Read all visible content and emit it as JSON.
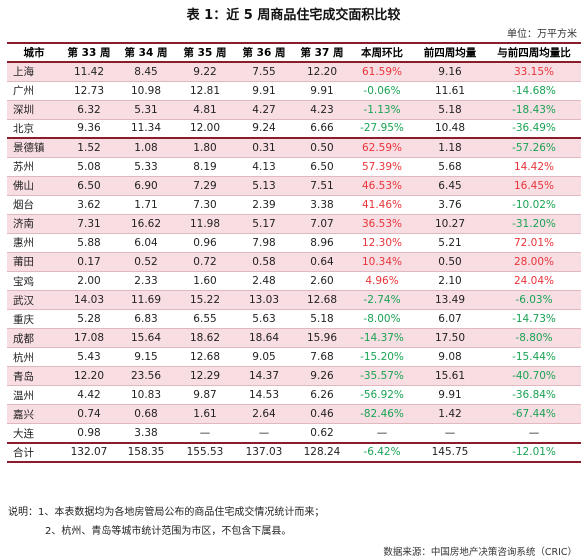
{
  "title": "表 1：近 5 周商品住宅成交面积比较",
  "unit": "单位：万平方米",
  "headers": [
    "城市",
    "第 33 周",
    "第 34 周",
    "第 35 周",
    "第 36 周",
    "第 37 周",
    "本周环比",
    "前四周均量",
    "与前四周均量比"
  ],
  "rows": [
    {
      "city": "上海",
      "w33": "11.42",
      "w34": "8.45",
      "w35": "9.22",
      "w36": "7.55",
      "w37": "12.20",
      "mom": "61.59%",
      "avg4": "9.16",
      "vs4": "33.15%"
    },
    {
      "city": "广州",
      "w33": "12.73",
      "w34": "10.98",
      "w35": "12.81",
      "w36": "9.91",
      "w37": "9.91",
      "mom": "-0.06%",
      "avg4": "11.61",
      "vs4": "-14.68%"
    },
    {
      "city": "深圳",
      "w33": "6.32",
      "w34": "5.31",
      "w35": "4.81",
      "w36": "4.27",
      "w37": "4.23",
      "mom": "-1.13%",
      "avg4": "5.18",
      "vs4": "-18.43%"
    },
    {
      "city": "北京",
      "w33": "9.36",
      "w34": "11.34",
      "w35": "12.00",
      "w36": "9.24",
      "w37": "6.66",
      "mom": "-27.95%",
      "avg4": "10.48",
      "vs4": "-36.49%"
    },
    {
      "city": "景德镇",
      "w33": "1.52",
      "w34": "1.08",
      "w35": "1.80",
      "w36": "0.31",
      "w37": "0.50",
      "mom": "62.59%",
      "avg4": "1.18",
      "vs4": "-57.26%"
    },
    {
      "city": "苏州",
      "w33": "5.08",
      "w34": "5.33",
      "w35": "8.19",
      "w36": "4.13",
      "w37": "6.50",
      "mom": "57.39%",
      "avg4": "5.68",
      "vs4": "14.42%"
    },
    {
      "city": "佛山",
      "w33": "6.50",
      "w34": "6.90",
      "w35": "7.29",
      "w36": "5.13",
      "w37": "7.51",
      "mom": "46.53%",
      "avg4": "6.45",
      "vs4": "16.45%"
    },
    {
      "city": "烟台",
      "w33": "3.62",
      "w34": "1.71",
      "w35": "7.30",
      "w36": "2.39",
      "w37": "3.38",
      "mom": "41.46%",
      "avg4": "3.76",
      "vs4": "-10.02%"
    },
    {
      "city": "济南",
      "w33": "7.31",
      "w34": "16.62",
      "w35": "11.98",
      "w36": "5.17",
      "w37": "7.07",
      "mom": "36.53%",
      "avg4": "10.27",
      "vs4": "-31.20%"
    },
    {
      "city": "惠州",
      "w33": "5.88",
      "w34": "6.04",
      "w35": "0.96",
      "w36": "7.98",
      "w37": "8.96",
      "mom": "12.30%",
      "avg4": "5.21",
      "vs4": "72.01%"
    },
    {
      "city": "莆田",
      "w33": "0.17",
      "w34": "0.52",
      "w35": "0.72",
      "w36": "0.58",
      "w37": "0.64",
      "mom": "10.34%",
      "avg4": "0.50",
      "vs4": "28.00%"
    },
    {
      "city": "宝鸡",
      "w33": "2.00",
      "w34": "2.33",
      "w35": "1.60",
      "w36": "2.48",
      "w37": "2.60",
      "mom": "4.96%",
      "avg4": "2.10",
      "vs4": "24.04%"
    },
    {
      "city": "武汉",
      "w33": "14.03",
      "w34": "11.69",
      "w35": "15.22",
      "w36": "13.03",
      "w37": "12.68",
      "mom": "-2.74%",
      "avg4": "13.49",
      "vs4": "-6.03%"
    },
    {
      "city": "重庆",
      "w33": "5.28",
      "w34": "6.83",
      "w35": "6.55",
      "w36": "5.63",
      "w37": "5.18",
      "mom": "-8.00%",
      "avg4": "6.07",
      "vs4": "-14.73%"
    },
    {
      "city": "成都",
      "w33": "17.08",
      "w34": "15.64",
      "w35": "18.62",
      "w36": "18.64",
      "w37": "15.96",
      "mom": "-14.37%",
      "avg4": "17.50",
      "vs4": "-8.80%"
    },
    {
      "city": "杭州",
      "w33": "5.43",
      "w34": "9.15",
      "w35": "12.68",
      "w36": "9.05",
      "w37": "7.68",
      "mom": "-15.20%",
      "avg4": "9.08",
      "vs4": "-15.44%"
    },
    {
      "city": "青岛",
      "w33": "12.20",
      "w34": "23.56",
      "w35": "12.29",
      "w36": "14.37",
      "w37": "9.26",
      "mom": "-35.57%",
      "avg4": "15.61",
      "vs4": "-40.70%"
    },
    {
      "city": "温州",
      "w33": "4.42",
      "w34": "10.83",
      "w35": "9.87",
      "w36": "14.53",
      "w37": "6.26",
      "mom": "-56.92%",
      "avg4": "9.91",
      "vs4": "-36.84%"
    },
    {
      "city": "嘉兴",
      "w33": "0.74",
      "w34": "0.68",
      "w35": "1.61",
      "w36": "2.64",
      "w37": "0.46",
      "mom": "-82.46%",
      "avg4": "1.42",
      "vs4": "-67.44%"
    },
    {
      "city": "大连",
      "w33": "0.98",
      "w34": "3.38",
      "w35": "—",
      "w36": "—",
      "w37": "0.62",
      "mom": "—",
      "avg4": "—",
      "vs4": "—"
    }
  ],
  "total": {
    "city": "合计",
    "w33": "132.07",
    "w34": "158.35",
    "w35": "155.53",
    "w36": "137.03",
    "w37": "128.24",
    "mom": "-6.42%",
    "avg4": "145.75",
    "vs4": "-12.01%"
  },
  "notes": {
    "n1": "说明：1、本表数据均为各地房管局公布的商品住宅成交情况统计而来；",
    "n2": "2、杭州、青岛等城市统计范围为市区，不包含下属县。"
  },
  "source": "数据来源：中国房地产决策咨询系统（CRIC）",
  "colors": {
    "positive": "#e8343a",
    "negative": "#1aa354",
    "border": "#8b1c2c",
    "stripe": "#f8dde2"
  }
}
